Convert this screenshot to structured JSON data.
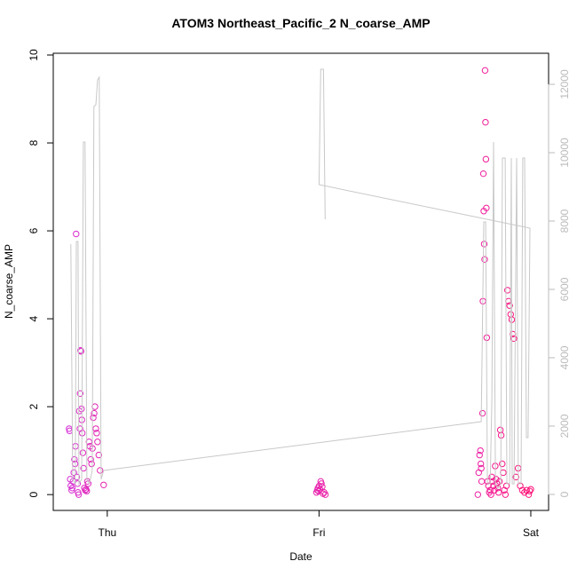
{
  "chart_data": {
    "type": "scatter",
    "title": "ATOM3 Northeast_Pacific_2 N_coarse_AMP",
    "xlabel": "Date",
    "ylabel": "N_coarse_AMP",
    "xlim": [
      -0.255,
      2.084
    ],
    "xticks": [
      {
        "value": 0,
        "label": "Thu"
      },
      {
        "value": 1,
        "label": "Fri"
      },
      {
        "value": 2,
        "label": "Sat"
      }
    ],
    "ylim": [
      -0.36,
      10.04
    ],
    "yticks": [
      0,
      2,
      4,
      6,
      8,
      10
    ],
    "y2lim": [
      -468,
      12909
    ],
    "y2ticks": [
      0,
      2000,
      4000,
      6000,
      8000,
      10000,
      12000
    ],
    "y2color": "#bbbbbb",
    "series": [
      {
        "type": "scatter",
        "colors": [
          "#d630d6",
          "#ff1177"
        ],
        "x": [
          -0.18,
          -0.178,
          -0.175,
          -0.172,
          -0.168,
          -0.165,
          -0.162,
          -0.158,
          -0.155,
          -0.152,
          -0.15,
          -0.147,
          -0.144,
          -0.14,
          -0.138,
          -0.135,
          -0.132,
          -0.129,
          -0.126,
          -0.124,
          -0.128,
          -0.122,
          -0.12,
          -0.118,
          -0.115,
          -0.112,
          -0.108,
          -0.104,
          -0.1,
          -0.097,
          -0.094,
          -0.09,
          -0.086,
          -0.082,
          -0.078,
          -0.074,
          -0.07,
          -0.066,
          -0.062,
          -0.058,
          -0.054,
          -0.05,
          -0.046,
          -0.04,
          -0.034,
          -0.017,
          0.988,
          0.992,
          0.995,
          0.998,
          1.001,
          1.004,
          1.008,
          1.011,
          1.015,
          1.019,
          1.024,
          1.03,
          1.75,
          1.754,
          1.758,
          1.762,
          1.764,
          1.766,
          1.768,
          1.772,
          1.774,
          1.776,
          1.778,
          1.78,
          1.782,
          1.784,
          1.786,
          1.788,
          1.79,
          1.792,
          1.796,
          1.8,
          1.804,
          1.808,
          1.812,
          1.816,
          1.82,
          1.824,
          1.828,
          1.832,
          1.836,
          1.84,
          1.844,
          1.848,
          1.852,
          1.856,
          1.86,
          1.865,
          1.87,
          1.875,
          1.88,
          1.885,
          1.89,
          1.895,
          1.9,
          1.905,
          1.91,
          1.915,
          1.92,
          1.93,
          1.94,
          1.95,
          1.96,
          1.97,
          1.98,
          1.99,
          1.995,
          2.0
        ],
        "values": [
          1.5,
          1.45,
          0.35,
          0.2,
          0.1,
          0.15,
          0.3,
          0.5,
          0.8,
          0.7,
          1.1,
          5.93,
          0.4,
          0.25,
          0.05,
          0.0,
          1.9,
          1.5,
          3.28,
          3.26,
          2.3,
          1.95,
          1.7,
          1.4,
          0.95,
          0.6,
          0.15,
          0.1,
          0.12,
          0.08,
          0.3,
          0.25,
          1.2,
          1.1,
          0.8,
          0.7,
          1.05,
          1.75,
          1.85,
          2.0,
          1.5,
          1.4,
          1.2,
          0.9,
          0.55,
          0.22,
          0.05,
          0.1,
          0.15,
          0.08,
          0.2,
          0.12,
          0.3,
          0.25,
          0.18,
          0.02,
          0.05,
          0.0,
          0.0,
          0.5,
          0.9,
          1.0,
          0.7,
          0.6,
          0.3,
          1.85,
          4.4,
          7.3,
          6.45,
          5.7,
          5.35,
          9.65,
          8.47,
          7.63,
          6.52,
          3.57,
          0.3,
          0.2,
          0.05,
          0.1,
          0.0,
          0.4,
          0.3,
          0.2,
          0.1,
          0.65,
          0.35,
          0.25,
          0.15,
          0.05,
          0.3,
          1.47,
          1.35,
          0.7,
          0.5,
          0.1,
          0.0,
          0.2,
          4.65,
          4.4,
          4.3,
          4.1,
          3.98,
          3.65,
          3.55,
          0.4,
          0.6,
          0.2,
          0.1,
          0.05,
          0.1,
          0.0,
          0.08,
          0.12
        ]
      },
      {
        "type": "line",
        "axis": "y2",
        "color": "#c8c8c8",
        "x": [
          -0.172,
          -0.163,
          -0.151,
          -0.146,
          -0.138,
          -0.134,
          -0.121,
          -0.113,
          -0.105,
          -0.096,
          -0.084,
          -0.071,
          -0.063,
          -0.054,
          -0.046,
          -0.038,
          -0.029,
          -0.017,
          1.766,
          1.778,
          1.787,
          1.795,
          1.808,
          1.816,
          1.824,
          1.833,
          1.845,
          1.858,
          1.866,
          1.879,
          1.887,
          1.9,
          1.908,
          1.912,
          1.921,
          1.933,
          1.941,
          1.954,
          1.962,
          1.971,
          1.979,
          1.987,
          1.996,
          1.0,
          1.008,
          1.021,
          1.029
        ],
        "values": [
          7325,
          442,
          312,
          7403,
          7403,
          312,
          442,
          10312,
          10312,
          442,
          312,
          701,
          11351,
          11403,
          12130,
          12208,
          442,
          701,
          2130,
          7974,
          7974,
          312,
          312,
          2779,
          10312,
          312,
          182,
          312,
          9844,
          9844,
          312,
          312,
          9844,
          312,
          312,
          9844,
          312,
          312,
          9844,
          9844,
          1662,
          1662,
          7792,
          9065,
          12442,
          12442,
          8052
        ]
      }
    ]
  }
}
